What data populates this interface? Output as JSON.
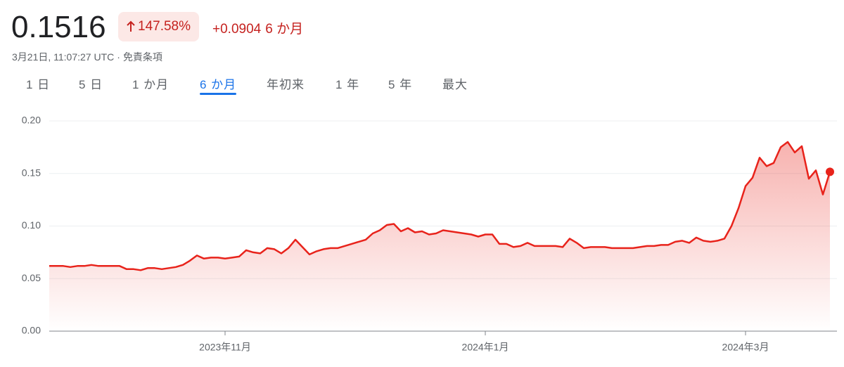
{
  "header": {
    "price": "0.1516",
    "change_percent": "147.58%",
    "change_value": "+0.0904",
    "change_period": "6 か月",
    "timestamp": "3月21日, 11:07:27 UTC",
    "separator": "·",
    "disclaimer": "免責条項"
  },
  "tabs": {
    "items": [
      "1 日",
      "5 日",
      "1 か月",
      "6 か月",
      "年初来",
      "1 年",
      "5 年",
      "最大"
    ],
    "active": 3
  },
  "chart_data": {
    "type": "line",
    "color": "#e8231b",
    "grid": true,
    "categories": [
      null,
      null,
      null,
      null,
      null,
      null,
      null,
      null,
      null,
      null,
      null,
      null,
      null,
      null,
      null,
      null,
      null,
      null,
      null,
      null,
      null,
      null,
      null,
      null,
      null,
      "2023年11月",
      null,
      null,
      null,
      null,
      null,
      null,
      null,
      null,
      null,
      null,
      null,
      null,
      null,
      null,
      null,
      null,
      null,
      null,
      null,
      null,
      null,
      null,
      null,
      null,
      null,
      null,
      null,
      null,
      null,
      null,
      null,
      null,
      null,
      null,
      null,
      null,
      "2024年1月",
      null,
      null,
      null,
      null,
      null,
      null,
      null,
      null,
      null,
      null,
      null,
      null,
      null,
      null,
      null,
      null,
      null,
      null,
      null,
      null,
      null,
      null,
      null,
      null,
      null,
      null,
      null,
      null,
      null,
      null,
      null,
      null,
      null,
      null,
      null,
      null,
      "2024年3月",
      null,
      null,
      null,
      null,
      null,
      null,
      null,
      null,
      null,
      null,
      null,
      null
    ],
    "values": [
      0.062,
      0.062,
      0.062,
      0.061,
      0.062,
      0.062,
      0.063,
      0.062,
      0.062,
      0.062,
      0.062,
      0.059,
      0.059,
      0.058,
      0.06,
      0.06,
      0.059,
      0.06,
      0.061,
      0.063,
      0.067,
      0.072,
      0.069,
      0.07,
      0.07,
      0.069,
      0.07,
      0.071,
      0.077,
      0.075,
      0.074,
      0.079,
      0.078,
      0.074,
      0.079,
      0.087,
      0.08,
      0.073,
      0.076,
      0.078,
      0.079,
      0.079,
      0.081,
      0.083,
      0.085,
      0.087,
      0.093,
      0.096,
      0.101,
      0.102,
      0.095,
      0.098,
      0.094,
      0.095,
      0.092,
      0.093,
      0.096,
      0.095,
      0.094,
      0.093,
      0.092,
      0.09,
      0.092,
      0.092,
      0.083,
      0.083,
      0.08,
      0.081,
      0.084,
      0.081,
      0.081,
      0.081,
      0.081,
      0.08,
      0.088,
      0.084,
      0.079,
      0.08,
      0.08,
      0.08,
      0.079,
      0.079,
      0.079,
      0.079,
      0.08,
      0.081,
      0.081,
      0.082,
      0.082,
      0.085,
      0.086,
      0.084,
      0.089,
      0.086,
      0.085,
      0.086,
      0.088,
      0.1,
      0.117,
      0.138,
      0.146,
      0.165,
      0.157,
      0.16,
      0.175,
      0.18,
      0.17,
      0.176,
      0.145,
      0.153,
      0.13,
      0.1516
    ],
    "ylim": [
      0,
      0.2
    ],
    "yticks": [
      {
        "value": 0,
        "label": "0.00"
      },
      0.05,
      {
        "value": 0.1,
        "label": "0.10"
      },
      0.15,
      {
        "value": 0.2,
        "label": "0.20"
      }
    ]
  }
}
